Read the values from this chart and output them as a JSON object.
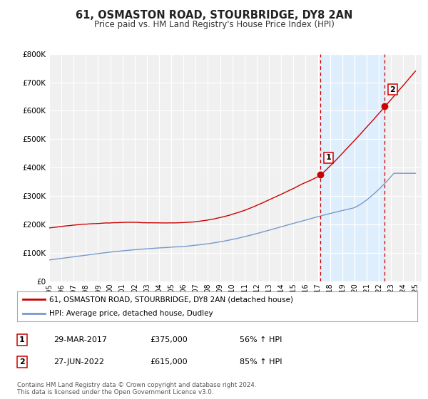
{
  "title": "61, OSMASTON ROAD, STOURBRIDGE, DY8 2AN",
  "subtitle": "Price paid vs. HM Land Registry's House Price Index (HPI)",
  "ylim": [
    0,
    800000
  ],
  "yticks": [
    0,
    100000,
    200000,
    300000,
    400000,
    500000,
    600000,
    700000,
    800000
  ],
  "ytick_labels": [
    "£0",
    "£100K",
    "£200K",
    "£300K",
    "£400K",
    "£500K",
    "£600K",
    "£700K",
    "£800K"
  ],
  "xlim_start": 1995,
  "xlim_end": 2025.5,
  "xticks": [
    1995,
    1996,
    1997,
    1998,
    1999,
    2000,
    2001,
    2002,
    2003,
    2004,
    2005,
    2006,
    2007,
    2008,
    2009,
    2010,
    2011,
    2012,
    2013,
    2014,
    2015,
    2016,
    2017,
    2018,
    2019,
    2020,
    2021,
    2022,
    2023,
    2024,
    2025
  ],
  "red_line_color": "#cc0000",
  "blue_line_color": "#7799cc",
  "background_color": "#ffffff",
  "plot_bg_color": "#f0f0f0",
  "grid_color": "#ffffff",
  "vline_color": "#cc0000",
  "shade_color": "#ddeeff",
  "point1_x": 2017.23,
  "point1_y": 375000,
  "point2_x": 2022.49,
  "point2_y": 615000,
  "legend_red_label": "61, OSMASTON ROAD, STOURBRIDGE, DY8 2AN (detached house)",
  "legend_blue_label": "HPI: Average price, detached house, Dudley",
  "table_rows": [
    {
      "num": "1",
      "date": "29-MAR-2017",
      "price": "£375,000",
      "hpi": "56% ↑ HPI"
    },
    {
      "num": "2",
      "date": "27-JUN-2022",
      "price": "£615,000",
      "hpi": "85% ↑ HPI"
    }
  ],
  "footnote1": "Contains HM Land Registry data © Crown copyright and database right 2024.",
  "footnote2": "This data is licensed under the Open Government Licence v3.0."
}
